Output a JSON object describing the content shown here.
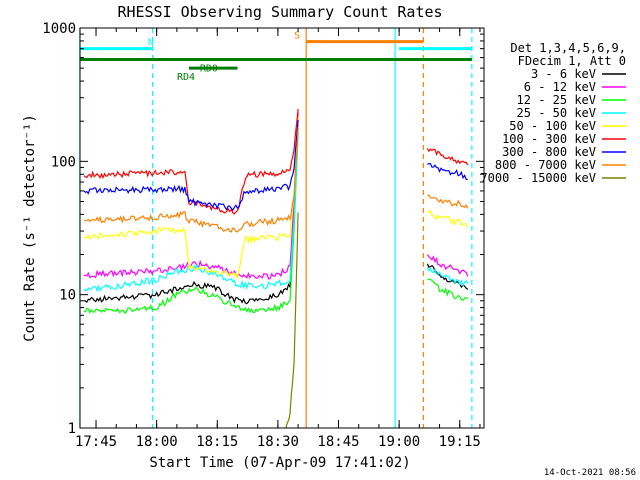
{
  "chart_data": {
    "type": "line",
    "title": "RHESSI Observing Summary Count Rates",
    "xlabel": "Start Time (07-Apr-09 17:41:02)",
    "ylabel": "Count Rate (s⁻¹ detector⁻¹)",
    "y_scale": "log",
    "ylim": [
      1,
      1000
    ],
    "xlim": [
      "17:41:02",
      "19:21:00"
    ],
    "y_ticks": [
      "1",
      "10",
      "100",
      "1000"
    ],
    "x_ticks": [
      "17:45",
      "18:00",
      "18:15",
      "18:30",
      "18:45",
      "19:00",
      "19:15"
    ],
    "timestamp": "14-Oct-2021 08:56",
    "legend_header": [
      "Det 1,3,4,5,6,9,",
      "FDecim 1, Att 0"
    ],
    "legend_position": "right",
    "series": [
      {
        "name": "3 - 6 keV",
        "color": "#000000",
        "x": [
          "17:42",
          "17:50",
          "18:00",
          "18:05",
          "18:10",
          "18:15",
          "18:20",
          "18:25",
          "18:30",
          "18:33",
          "18:34",
          "18:35",
          "19:07",
          "19:10",
          "19:15",
          "19:17"
        ],
        "values": [
          9,
          9.5,
          10,
          11,
          12,
          11,
          9,
          9,
          10,
          12,
          45,
          220,
          17,
          14,
          12,
          11
        ]
      },
      {
        "name": "6 - 12 keV",
        "color": "#ff00ff",
        "x": [
          "17:42",
          "17:50",
          "18:00",
          "18:05",
          "18:10",
          "18:15",
          "18:20",
          "18:25",
          "18:30",
          "18:33",
          "18:34",
          "18:35",
          "19:07",
          "19:10",
          "19:15",
          "19:17"
        ],
        "values": [
          14,
          14.5,
          15,
          16,
          17,
          16,
          14,
          13.5,
          14,
          16,
          50,
          230,
          20,
          17,
          15,
          14
        ]
      },
      {
        "name": "12 - 25 keV",
        "color": "#00ff00",
        "x": [
          "17:42",
          "17:50",
          "18:00",
          "18:05",
          "18:10",
          "18:15",
          "18:20",
          "18:25",
          "18:30",
          "18:33",
          "18:34",
          "18:35",
          "19:07",
          "19:10",
          "19:15",
          "19:17"
        ],
        "values": [
          7.5,
          7.5,
          8,
          10,
          11,
          9.5,
          8,
          7.5,
          8,
          9,
          30,
          160,
          13,
          11,
          9.5,
          9
        ]
      },
      {
        "name": "25 - 50 keV",
        "color": "#00ffff",
        "x": [
          "17:42",
          "17:50",
          "18:00",
          "18:05",
          "18:10",
          "18:15",
          "18:20",
          "18:25",
          "18:30",
          "18:33",
          "18:34",
          "18:35",
          "19:07",
          "19:10",
          "19:15",
          "19:17"
        ],
        "values": [
          11,
          11.5,
          13,
          15,
          16,
          14,
          12,
          11.5,
          12,
          13,
          35,
          170,
          16,
          14,
          12.5,
          12
        ]
      },
      {
        "name": "50 - 100 keV",
        "color": "#ffff00",
        "x": [
          "17:42",
          "17:50",
          "18:00",
          "18:07",
          "18:08",
          "18:15",
          "18:20",
          "18:22",
          "18:30",
          "18:33",
          "18:34",
          "18:35",
          "19:07",
          "19:10",
          "19:15",
          "19:17"
        ],
        "values": [
          27,
          28,
          30,
          31,
          16,
          15,
          14,
          26,
          27,
          28,
          60,
          210,
          42,
          38,
          35,
          33
        ]
      },
      {
        "name": "100 - 300 keV",
        "color": "#ff0000",
        "x": [
          "17:42",
          "17:50",
          "18:00",
          "18:07",
          "18:08",
          "18:15",
          "18:20",
          "18:22",
          "18:30",
          "18:33",
          "18:34",
          "18:35",
          "19:07",
          "19:10",
          "19:15",
          "19:17"
        ],
        "values": [
          78,
          80,
          82,
          84,
          50,
          44,
          42,
          78,
          82,
          88,
          120,
          250,
          125,
          115,
          100,
          95
        ]
      },
      {
        "name": "300 - 800 keV",
        "color": "#0000ff",
        "x": [
          "17:42",
          "17:50",
          "18:00",
          "18:07",
          "18:08",
          "18:15",
          "18:20",
          "18:22",
          "18:30",
          "18:33",
          "18:34",
          "18:35",
          "19:07",
          "19:10",
          "19:15",
          "19:17"
        ],
        "values": [
          60,
          61,
          61,
          62,
          50,
          46,
          45,
          60,
          62,
          65,
          90,
          200,
          95,
          88,
          80,
          75
        ]
      },
      {
        "name": "800 - 7000 keV",
        "color": "#ff8000",
        "x": [
          "17:42",
          "17:50",
          "18:00",
          "18:07",
          "18:08",
          "18:15",
          "18:20",
          "18:22",
          "18:30",
          "18:33",
          "18:34",
          "18:35",
          "19:07",
          "19:10",
          "19:15",
          "19:17"
        ],
        "values": [
          36,
          37,
          38,
          40,
          36,
          32,
          30,
          34,
          36,
          38,
          55,
          180,
          55,
          50,
          48,
          45
        ]
      },
      {
        "name": "7000 - 15000 keV",
        "color": "#808000",
        "x": [
          "18:32",
          "18:33",
          "18:34",
          "18:35"
        ],
        "values": [
          1,
          1.3,
          3,
          40
        ]
      }
    ],
    "attenuator_lines": [
      {
        "label": "",
        "color": "#00ffff",
        "style": "solid",
        "x": "17:41"
      },
      {
        "label": "",
        "color": "#00ffff",
        "style": "dashed",
        "x": "17:59"
      },
      {
        "label": "",
        "color": "#ff8000",
        "style": "solid",
        "x": "18:37"
      },
      {
        "label": "",
        "color": "#00ffff",
        "style": "solid",
        "x": "18:59"
      },
      {
        "label": "",
        "color": "#ff8000",
        "style": "dashed",
        "x": "19:06"
      },
      {
        "label": "",
        "color": "#00ffff",
        "style": "dashed",
        "x": "19:18"
      }
    ],
    "flag_bars": [
      {
        "label": "N",
        "color": "#00ffff",
        "segments": [
          [
            "17:41",
            "17:59"
          ],
          [
            "19:00",
            "19:18"
          ]
        ],
        "level": 700
      },
      {
        "label": "S",
        "color": "#ff8000",
        "segments": [
          [
            "18:37",
            "19:06"
          ]
        ],
        "level": 790
      },
      {
        "label": "RD0",
        "color": "#008000",
        "segments": [
          [
            "17:41",
            "18:31"
          ],
          [
            "18:31",
            "19:18"
          ]
        ],
        "level": 580
      },
      {
        "label": "RD4",
        "color": "#008000",
        "segments": [
          [
            "18:08",
            "18:20"
          ]
        ],
        "level": 500
      }
    ]
  }
}
